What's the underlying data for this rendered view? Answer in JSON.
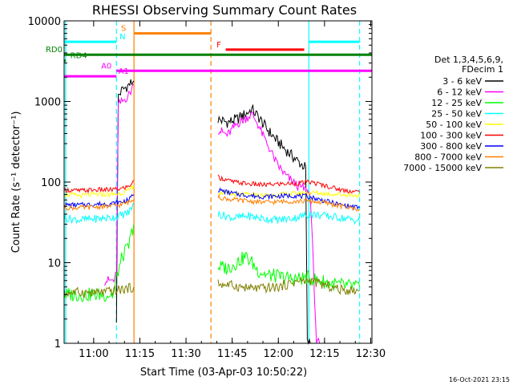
{
  "chart_data": {
    "type": "line",
    "title": "RHESSI Observing Summary Count Rates",
    "xlabel": "Start Time (03-Apr-03 10:50:22)",
    "ylabel": "Count Rate (s⁻¹ detector⁻¹)",
    "yscale": "log",
    "ylim": [
      1,
      10000
    ],
    "xlim_minutes_after_10_50_22": [
      0,
      100
    ],
    "x_ticks": [
      {
        "label": "11:00",
        "min": 9.6
      },
      {
        "label": "11:15",
        "min": 24.6
      },
      {
        "label": "11:30",
        "min": 39.6
      },
      {
        "label": "11:45",
        "min": 54.6
      },
      {
        "label": "12:00",
        "min": 69.6
      },
      {
        "label": "12:15",
        "min": 84.6
      },
      {
        "label": "12:30",
        "min": 99.6
      }
    ],
    "y_ticks": [
      {
        "label": "1",
        "v": 1
      },
      {
        "label": "10",
        "v": 10
      },
      {
        "label": "100",
        "v": 100
      },
      {
        "label": "1000",
        "v": 1000
      },
      {
        "label": "10000",
        "v": 10000
      }
    ],
    "legend_header": [
      "Det 1,3,4,5,6,9,",
      "FDecim 1"
    ],
    "legend_position": "right",
    "series": [
      {
        "name": "3 - 6 keV",
        "color": "#000000",
        "seg1": [
          [
            17,
            2
          ],
          [
            17.6,
            1200
          ],
          [
            19,
            1400
          ],
          [
            21,
            1600
          ],
          [
            22.6,
            1800
          ]
        ],
        "seg2": [
          [
            50,
            600
          ],
          [
            53,
            550
          ],
          [
            56,
            600
          ],
          [
            59,
            700
          ],
          [
            61,
            800
          ],
          [
            63,
            650
          ],
          [
            66,
            450
          ],
          [
            69,
            330
          ],
          [
            72,
            250
          ],
          [
            76,
            180
          ],
          [
            78.5,
            150
          ],
          [
            79,
            1
          ],
          [
            80,
            1
          ]
        ]
      },
      {
        "name": "6 - 12 keV",
        "color": "#ff00ff",
        "seg1": [
          [
            13,
            6
          ],
          [
            16.5,
            6
          ],
          [
            17,
            8
          ],
          [
            17.6,
            900
          ],
          [
            19,
            1000
          ],
          [
            21,
            1200
          ],
          [
            22.6,
            1600
          ]
        ],
        "seg2": [
          [
            50,
            450
          ],
          [
            53,
            380
          ],
          [
            56,
            520
          ],
          [
            59,
            620
          ],
          [
            61,
            700
          ],
          [
            63,
            520
          ],
          [
            65,
            350
          ],
          [
            67,
            250
          ],
          [
            69,
            170
          ],
          [
            72,
            120
          ],
          [
            75,
            95
          ],
          [
            78.5,
            80
          ],
          [
            80,
            70
          ],
          [
            82,
            1
          ],
          [
            83,
            1
          ]
        ]
      },
      {
        "name": "12 - 25 keV",
        "color": "#00ff00",
        "seg1": [
          [
            0,
            4
          ],
          [
            10,
            4
          ],
          [
            14,
            4
          ],
          [
            16,
            4
          ],
          [
            17.6,
            8
          ],
          [
            19,
            12
          ],
          [
            21,
            16
          ],
          [
            22.6,
            30
          ]
        ],
        "seg2": [
          [
            50,
            9
          ],
          [
            53,
            8.5
          ],
          [
            56,
            10
          ],
          [
            59,
            12
          ],
          [
            61,
            10
          ],
          [
            63,
            8
          ],
          [
            66,
            7
          ],
          [
            69,
            6.8
          ],
          [
            72,
            6.5
          ],
          [
            76,
            6.3
          ],
          [
            79,
            6.5
          ],
          [
            83,
            6
          ],
          [
            87,
            5.5
          ],
          [
            91,
            5.2
          ],
          [
            96,
            5
          ]
        ]
      },
      {
        "name": "25 - 50 keV",
        "color": "#00ffff",
        "seg1": [
          [
            0,
            36
          ],
          [
            5,
            34
          ],
          [
            10,
            35
          ],
          [
            15,
            36
          ],
          [
            18,
            38
          ],
          [
            21,
            42
          ],
          [
            22.6,
            55
          ]
        ],
        "seg2": [
          [
            50,
            40
          ],
          [
            55,
            36
          ],
          [
            60,
            38
          ],
          [
            65,
            35
          ],
          [
            70,
            34
          ],
          [
            75,
            36
          ],
          [
            80,
            40
          ],
          [
            85,
            38
          ],
          [
            90,
            36
          ],
          [
            96,
            33
          ]
        ]
      },
      {
        "name": "50 - 100 keV",
        "color": "#ffff00",
        "seg1": [
          [
            0,
            70
          ],
          [
            5,
            68
          ],
          [
            10,
            70
          ],
          [
            15,
            70
          ],
          [
            18,
            72
          ],
          [
            21,
            78
          ],
          [
            22.6,
            90
          ]
        ],
        "seg2": [
          [
            50,
            75
          ],
          [
            55,
            70
          ],
          [
            60,
            70
          ],
          [
            65,
            68
          ],
          [
            70,
            70
          ],
          [
            75,
            72
          ],
          [
            80,
            74
          ],
          [
            85,
            72
          ],
          [
            90,
            70
          ],
          [
            96,
            68
          ]
        ]
      },
      {
        "name": "100 - 300 keV",
        "color": "#ff0000",
        "seg1": [
          [
            0,
            80
          ],
          [
            5,
            78
          ],
          [
            10,
            80
          ],
          [
            15,
            80
          ],
          [
            18,
            82
          ],
          [
            21,
            88
          ],
          [
            22.6,
            105
          ]
        ],
        "seg2": [
          [
            50,
            115
          ],
          [
            55,
            100
          ],
          [
            60,
            95
          ],
          [
            65,
            92
          ],
          [
            70,
            95
          ],
          [
            75,
            96
          ],
          [
            80,
            100
          ],
          [
            85,
            90
          ],
          [
            90,
            80
          ],
          [
            96,
            75
          ]
        ]
      },
      {
        "name": "300 - 800 keV",
        "color": "#0000ff",
        "seg1": [
          [
            0,
            52
          ],
          [
            5,
            52
          ],
          [
            10,
            53
          ],
          [
            15,
            54
          ],
          [
            18,
            56
          ],
          [
            21,
            60
          ],
          [
            22.6,
            70
          ]
        ],
        "seg2": [
          [
            50,
            80
          ],
          [
            55,
            72
          ],
          [
            60,
            68
          ],
          [
            65,
            66
          ],
          [
            70,
            67
          ],
          [
            75,
            68
          ],
          [
            80,
            65
          ],
          [
            85,
            58
          ],
          [
            90,
            52
          ],
          [
            96,
            48
          ]
        ]
      },
      {
        "name": "800 - 7000 keV",
        "color": "#ff8000",
        "seg1": [
          [
            0,
            48
          ],
          [
            5,
            48
          ],
          [
            10,
            49
          ],
          [
            15,
            50
          ],
          [
            18,
            52
          ],
          [
            21,
            56
          ],
          [
            22.6,
            60
          ]
        ],
        "seg2": [
          [
            50,
            65
          ],
          [
            55,
            60
          ],
          [
            60,
            58
          ],
          [
            65,
            56
          ],
          [
            70,
            57
          ],
          [
            75,
            58
          ],
          [
            80,
            58
          ],
          [
            85,
            55
          ],
          [
            90,
            50
          ],
          [
            96,
            46
          ]
        ]
      },
      {
        "name": "7000 - 15000 keV",
        "color": "#808000",
        "seg1": [
          [
            0,
            4.2
          ],
          [
            5,
            4.3
          ],
          [
            10,
            4.2
          ],
          [
            15,
            4.4
          ],
          [
            18,
            4.6
          ],
          [
            21,
            4.8
          ],
          [
            22.6,
            5
          ]
        ],
        "seg2": [
          [
            50,
            5.5
          ],
          [
            55,
            5.2
          ],
          [
            60,
            4.8
          ],
          [
            65,
            4.8
          ],
          [
            70,
            5
          ],
          [
            75,
            5.8
          ],
          [
            80,
            6
          ],
          [
            85,
            5.2
          ],
          [
            90,
            4.6
          ],
          [
            96,
            4.5
          ]
        ]
      }
    ],
    "vertical_markers": [
      {
        "min": 0.5,
        "color": "#00ffff",
        "style": "solid"
      },
      {
        "min": 17,
        "color": "#00ffff",
        "style": "dashed"
      },
      {
        "min": 22.7,
        "color": "#ff8000",
        "style": "solid"
      },
      {
        "min": 47.7,
        "color": "#ff8000",
        "style": "dashed"
      },
      {
        "min": 79.5,
        "color": "#00ffff",
        "style": "solid"
      },
      {
        "min": 96,
        "color": "#00ffff",
        "style": "dashed"
      }
    ],
    "flag_bars": [
      {
        "label": "N",
        "color": "#00ffff",
        "y": 5500,
        "ranges": [
          [
            0,
            17
          ],
          [
            79.5,
            96
          ]
        ],
        "label_at": 18
      },
      {
        "label": "S",
        "color": "#ff8000",
        "y": 7000,
        "ranges": [
          [
            22.7,
            47.7
          ]
        ],
        "label_at": 18.5
      },
      {
        "label": "F",
        "color": "#ff0000",
        "y": 4400,
        "ranges": [
          [
            52.5,
            78
          ]
        ],
        "label_at": 49.5
      },
      {
        "label": "RD0",
        "color": "#008000",
        "y": 3800,
        "ranges": [
          [
            0,
            100
          ]
        ],
        "label_at": -6
      },
      {
        "label": "RD4",
        "color": "#008000",
        "y": 3200,
        "ranges": [
          [
            0,
            0.5
          ]
        ],
        "label_at": 2
      },
      {
        "label": "A0",
        "color": "#ff00ff",
        "y": 2400,
        "ranges": [
          [
            17,
            100
          ]
        ],
        "label_at": 12
      },
      {
        "label": "A1",
        "color": "#ff00ff",
        "y": 2050,
        "ranges": [
          [
            0,
            17
          ]
        ],
        "label_at": 17.6
      }
    ],
    "footer_timestamp": "16-Oct-2021 23:15"
  }
}
